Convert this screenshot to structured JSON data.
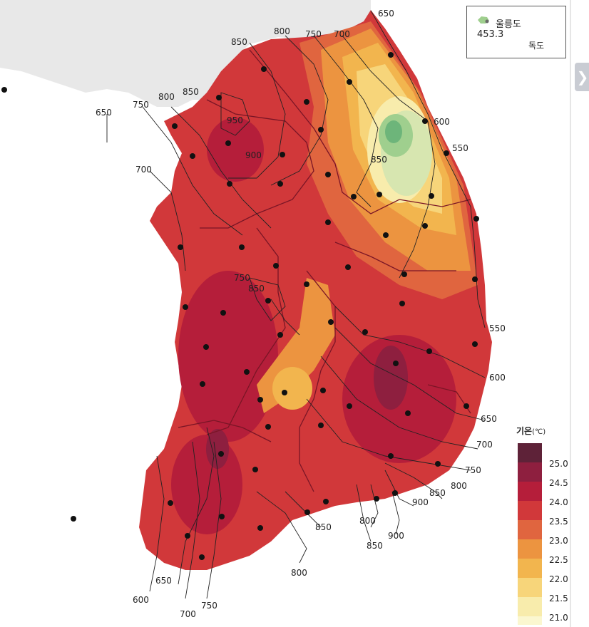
{
  "map": {
    "contour_labels": [
      "650",
      "800",
      "750",
      "700",
      "850",
      "950",
      "900",
      "850",
      "600",
      "550",
      "750",
      "800",
      "850",
      "650",
      "700",
      "750",
      "850",
      "550",
      "600",
      "650",
      "700",
      "750",
      "800",
      "850",
      "900",
      "800",
      "900",
      "850",
      "800",
      "850",
      "650",
      "750",
      "700",
      "600"
    ],
    "inset": {
      "label": "울릉도",
      "value": "453.3",
      "dokdo": "독도",
      "inset-icon": "ulleungdo-island-icon"
    },
    "side_tab_icon": "chevron-right-icon"
  },
  "legend": {
    "title": "기온",
    "unit": "(℃)",
    "labels": [
      "25.0",
      "24.5",
      "24.0",
      "23.5",
      "23.0",
      "22.5",
      "22.0",
      "21.5",
      "21.0"
    ],
    "colors": [
      "#5e2238",
      "#8e1f3f",
      "#b51e3a",
      "#d1383a",
      "#e0653f",
      "#ec9440",
      "#f2b54e",
      "#f7d57a",
      "#f8ecac",
      "#fbf7d0"
    ]
  }
}
